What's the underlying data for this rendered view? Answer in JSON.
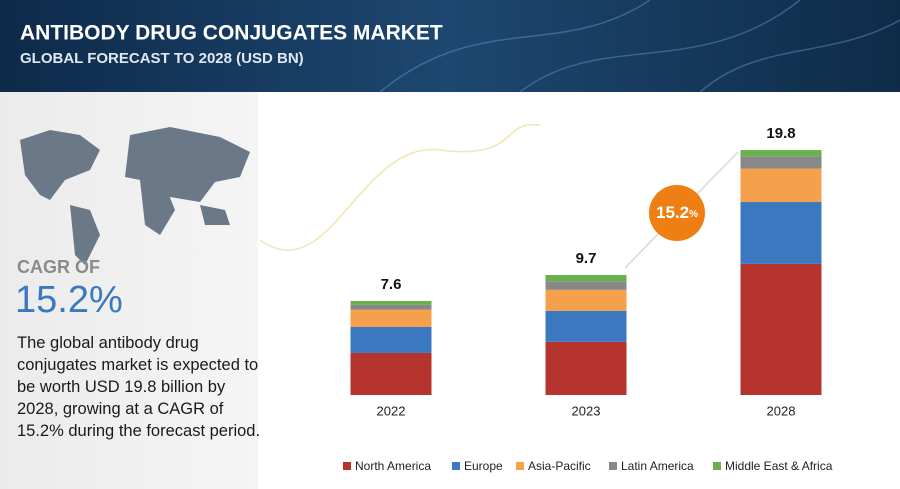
{
  "header": {
    "title": "ANTIBODY DRUG CONJUGATES MARKET",
    "subtitle": "GLOBAL FORECAST TO 2028 (USD BN)"
  },
  "sidebar": {
    "cagr_label": "CAGR OF",
    "cagr_value": "15.2%",
    "description": "The global antibody drug conjugates market is expected to be worth USD 19.8 billion by 2028, growing at a CAGR of 15.2% during the forecast period."
  },
  "badge": {
    "number": "15.2",
    "unit": "%"
  },
  "chart_data": {
    "type": "stacked_bar",
    "categories": [
      "2022",
      "2023",
      "2028"
    ],
    "totals": [
      7.6,
      9.7,
      19.8
    ],
    "series": [
      {
        "name": "North America",
        "color": "#b5342d",
        "values": [
          3.4,
          4.3,
          10.6
        ]
      },
      {
        "name": "Europe",
        "color": "#3b78bf",
        "values": [
          2.1,
          2.5,
          5.0
        ]
      },
      {
        "name": "Asia-Pacific",
        "color": "#f5a04a",
        "values": [
          1.4,
          1.7,
          2.7
        ]
      },
      {
        "name": "Latin America",
        "color": "#888888",
        "values": [
          0.4,
          0.7,
          1.0
        ]
      },
      {
        "name": "Middle East & Africa",
        "color": "#6ab04c",
        "values": [
          0.3,
          0.5,
          0.5
        ]
      }
    ],
    "legend": "bottom"
  }
}
